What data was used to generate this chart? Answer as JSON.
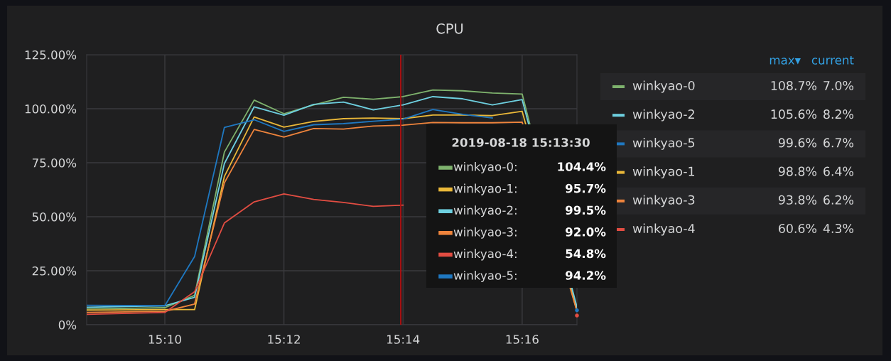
{
  "chart_data": {
    "type": "line",
    "title": "CPU",
    "x": [
      15.1448,
      15.16667,
      15.175,
      15.18333,
      15.19167,
      15.2,
      15.20833,
      15.21667,
      15.225,
      15.23333,
      15.24167,
      15.25,
      15.25833,
      15.26667,
      15.282
    ],
    "series": [
      {
        "name": "winkyao-0",
        "color": "#7eb26d",
        "values": [
          7.3,
          7.9,
          13.6,
          79.9,
          104.0,
          97.7,
          101.8,
          105.3,
          104.4,
          105.6,
          108.7,
          108.3,
          107.3,
          106.8,
          7.0
        ]
      },
      {
        "name": "winkyao-1",
        "color": "#eab839",
        "values": [
          6.8,
          7.0,
          7.0,
          68.6,
          96.2,
          91.5,
          94.1,
          95.4,
          95.7,
          95.4,
          97.1,
          97.1,
          96.8,
          98.8,
          6.4
        ]
      },
      {
        "name": "winkyao-2",
        "color": "#6ed0e0",
        "values": [
          8.1,
          8.8,
          12.7,
          74.6,
          100.9,
          97.0,
          102.0,
          103.1,
          99.5,
          101.8,
          105.6,
          104.6,
          101.8,
          104.2,
          8.2
        ]
      },
      {
        "name": "winkyao-3",
        "color": "#ef843c",
        "values": [
          5.7,
          6.2,
          9.6,
          65.7,
          90.4,
          86.9,
          90.8,
          90.6,
          92.0,
          92.4,
          93.6,
          93.5,
          93.5,
          93.8,
          6.2
        ]
      },
      {
        "name": "winkyao-4",
        "color": "#e24d42",
        "values": [
          4.8,
          5.7,
          15.3,
          47.1,
          56.9,
          60.6,
          58.0,
          56.6,
          54.8,
          55.4,
          null,
          null,
          null,
          null,
          4.3
        ]
      },
      {
        "name": "winkyao-5",
        "color": "#1f78c1",
        "values": [
          9.0,
          8.8,
          31.6,
          91.3,
          94.9,
          89.5,
          92.6,
          93.1,
          94.2,
          95.2,
          99.6,
          97.4,
          95.7,
          null,
          6.7
        ]
      }
    ],
    "xlim": [
      15.1448,
      15.282
    ],
    "xticks": [
      {
        "value": 15.16667,
        "label": "15:10"
      },
      {
        "value": 15.2,
        "label": "15:12"
      },
      {
        "value": 15.23333,
        "label": "15:14"
      },
      {
        "value": 15.26667,
        "label": "15:16"
      }
    ],
    "ylim": [
      0,
      125
    ],
    "yticks": [
      {
        "value": 0,
        "label": "0%"
      },
      {
        "value": 25,
        "label": "25.00%"
      },
      {
        "value": 50,
        "label": "50.00%"
      },
      {
        "value": 75,
        "label": "75.00%"
      },
      {
        "value": 100,
        "label": "100.00%"
      },
      {
        "value": 125,
        "label": "125.00%"
      }
    ],
    "grid": true,
    "legend": "right",
    "ref_lines": [
      {
        "axis": "x",
        "value": 15.2327,
        "color": "#b01010"
      }
    ],
    "annotations": [
      "2019-08-18 15:13:30",
      "max▾",
      "current",
      "winkyao-0:",
      "104.4%",
      "108.7%",
      "7.0%",
      "winkyao-1:",
      "95.7%",
      "98.8%",
      "6.4%",
      "winkyao-2:",
      "99.5%",
      "105.6%",
      "8.2%",
      "winkyao-3:",
      "92.0%",
      "93.8%",
      "6.2%",
      "winkyao-4:",
      "54.8%",
      "60.6%",
      "4.3%",
      "winkyao-5:",
      "94.2%",
      "99.6%",
      "6.7%"
    ]
  }
}
